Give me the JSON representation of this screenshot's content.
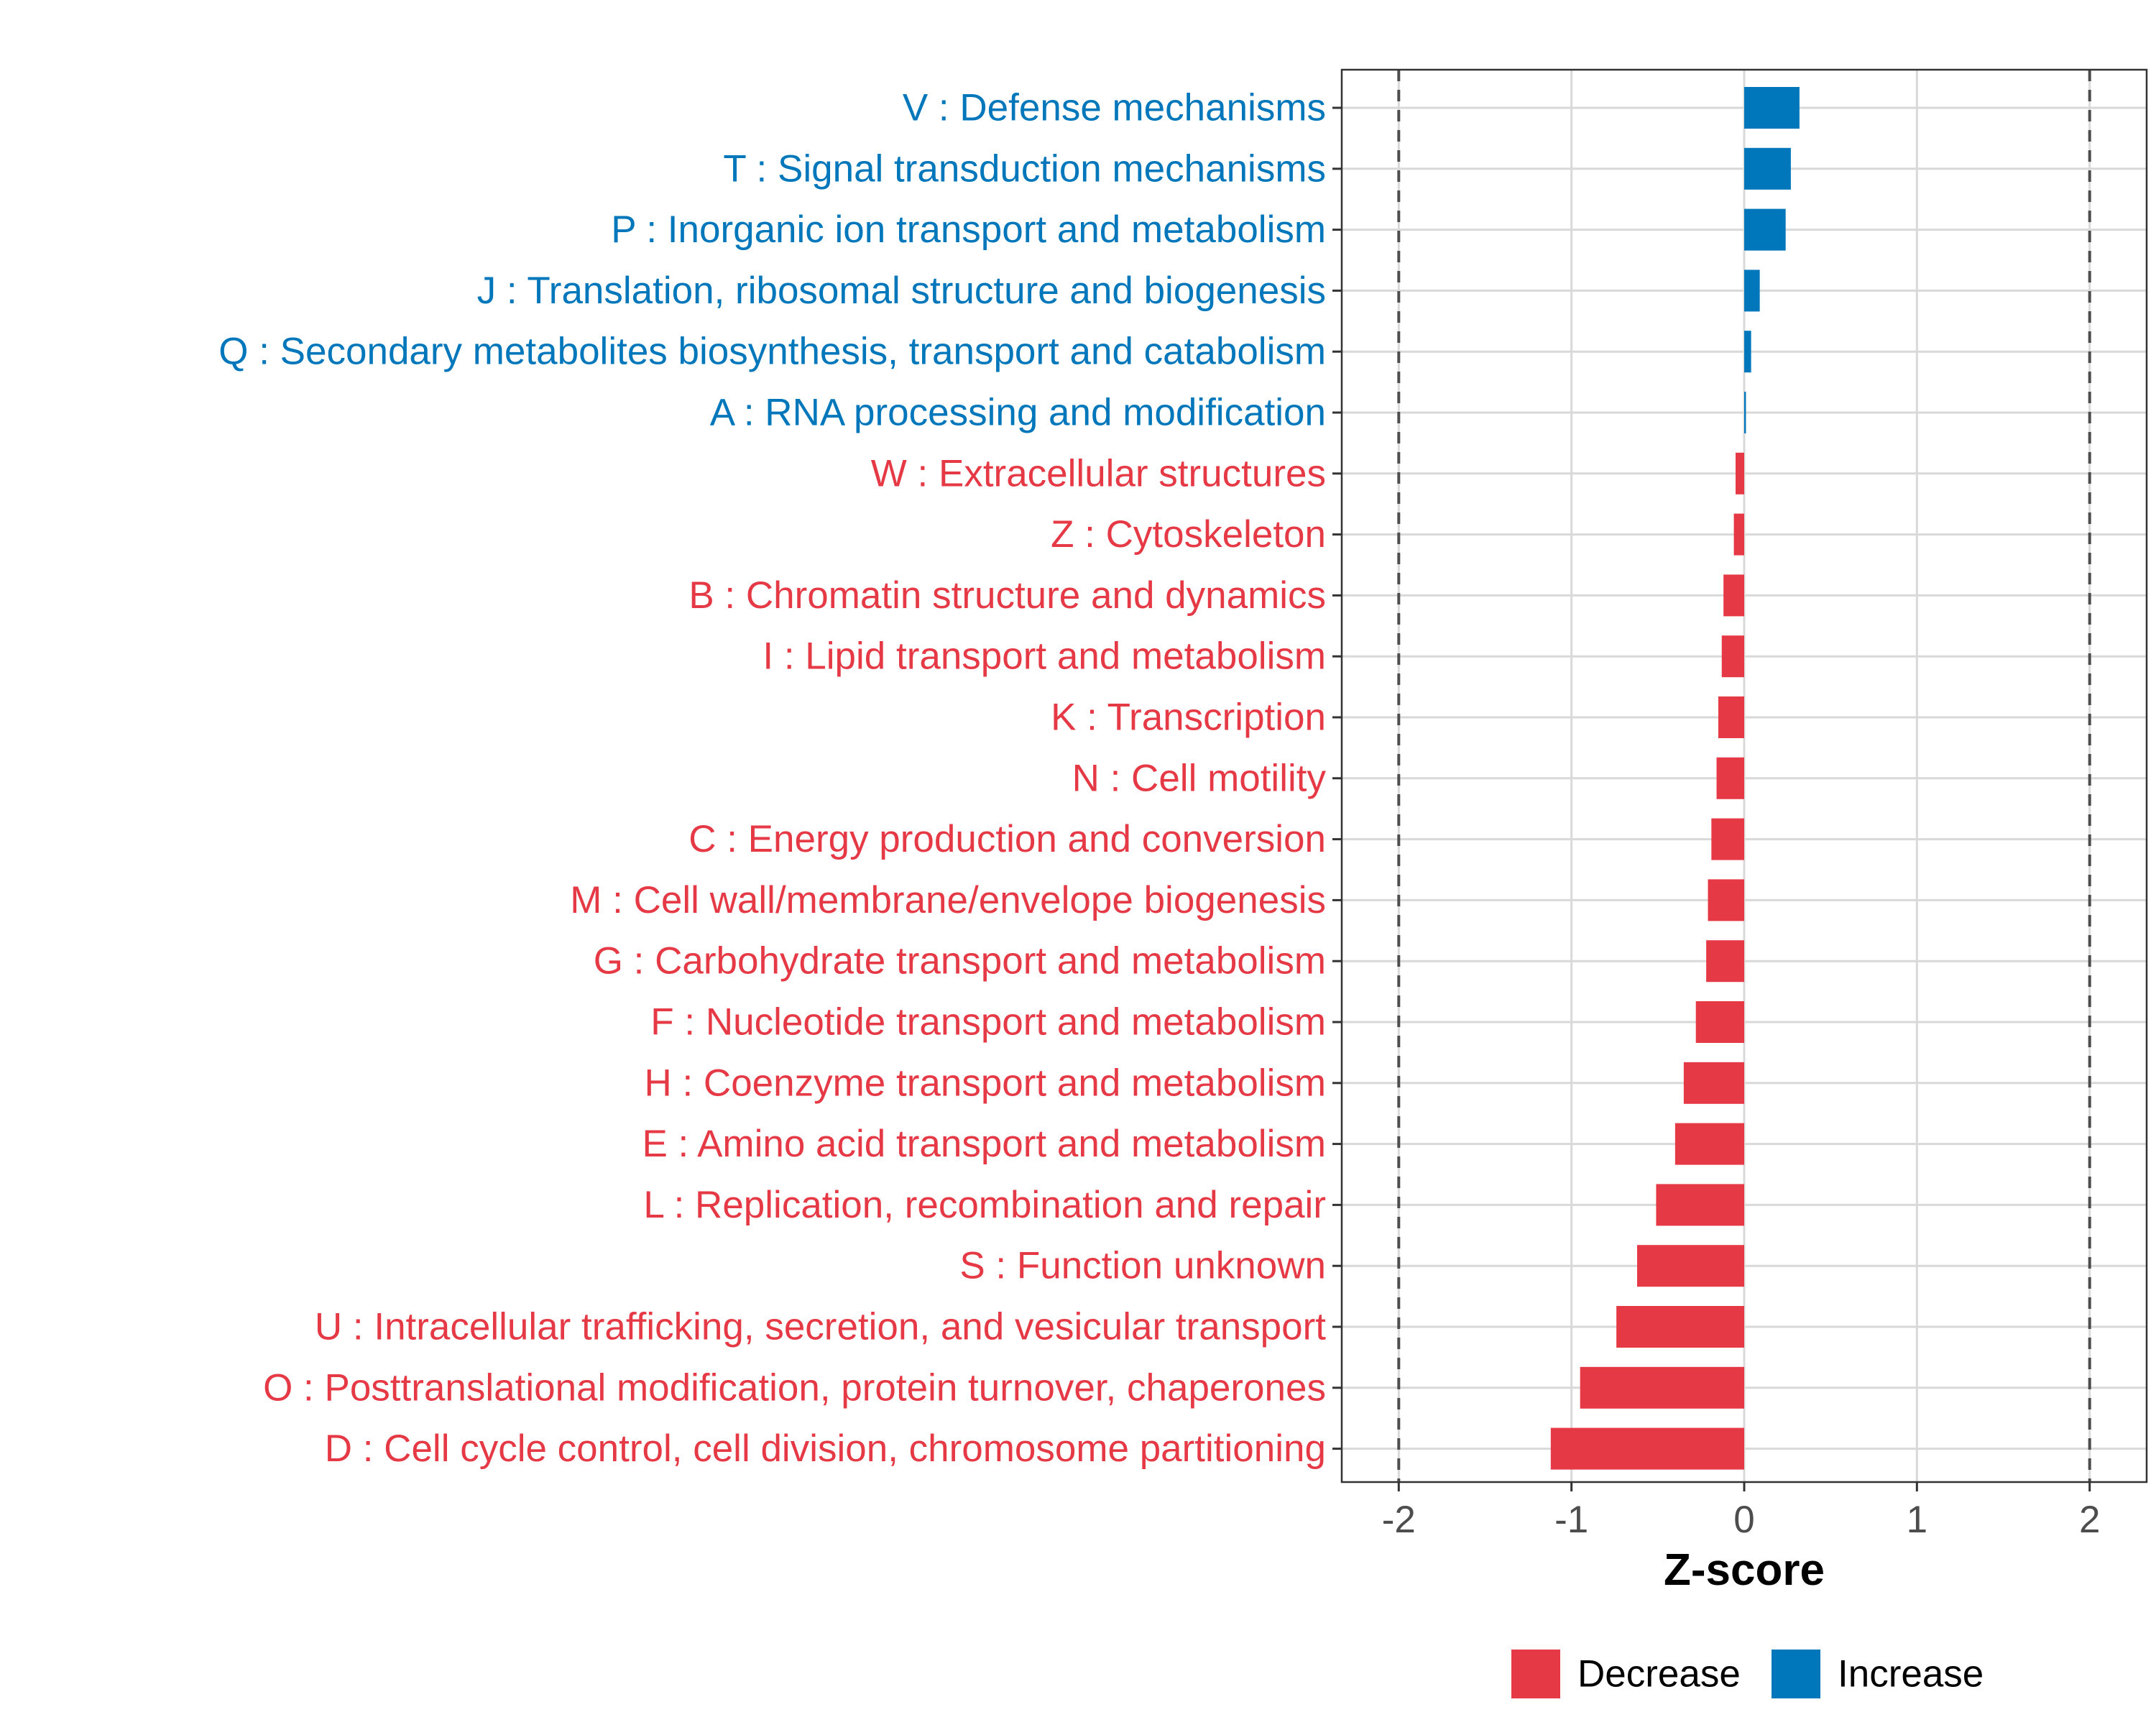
{
  "chart_data": {
    "type": "bar",
    "orientation": "horizontal",
    "xlabel": "Z-score",
    "xlim": [
      -2.33,
      2.33
    ],
    "xticks": [
      -2,
      -1,
      0,
      1,
      2
    ],
    "xtick_labels": [
      "-2",
      "-1",
      "0",
      "1",
      "2"
    ],
    "reference_lines": [
      -2,
      2
    ],
    "grid": true,
    "categories": [
      "V : Defense mechanisms",
      "T : Signal transduction mechanisms",
      "P : Inorganic ion transport and metabolism",
      "J : Translation, ribosomal structure and biogenesis",
      "Q : Secondary metabolites biosynthesis, transport and catabolism",
      "A : RNA processing and modification",
      "W : Extracellular structures",
      "Z : Cytoskeleton",
      "B : Chromatin structure and dynamics",
      "I : Lipid transport and metabolism",
      "K : Transcription",
      "N : Cell motility",
      "C : Energy production and conversion",
      "M : Cell wall/membrane/envelope biogenesis",
      "G : Carbohydrate transport and metabolism",
      "F : Nucleotide transport and metabolism",
      "H : Coenzyme transport and metabolism",
      "E : Amino acid transport and metabolism",
      "L : Replication, recombination and repair",
      "S : Function unknown",
      "U : Intracellular trafficking, secretion, and vesicular transport",
      "O : Posttranslational modification, protein turnover, chaperones",
      "D : Cell cycle control, cell division, chromosome partitioning"
    ],
    "values": [
      0.32,
      0.27,
      0.24,
      0.09,
      0.04,
      0.01,
      -0.05,
      -0.06,
      -0.12,
      -0.13,
      -0.15,
      -0.16,
      -0.19,
      -0.21,
      -0.22,
      -0.28,
      -0.35,
      -0.4,
      -0.51,
      -0.62,
      -0.74,
      -0.95,
      -1.12
    ],
    "legend": {
      "position": "bottom",
      "entries": [
        {
          "name": "Decrease",
          "color": "#E63946"
        },
        {
          "name": "Increase",
          "color": "#0077BB"
        }
      ]
    }
  },
  "colors": {
    "decrease": "#E63946",
    "increase": "#0077BB",
    "grid": "#d9d9d9",
    "refline": "#4d4d4d",
    "frame": "#333333"
  }
}
